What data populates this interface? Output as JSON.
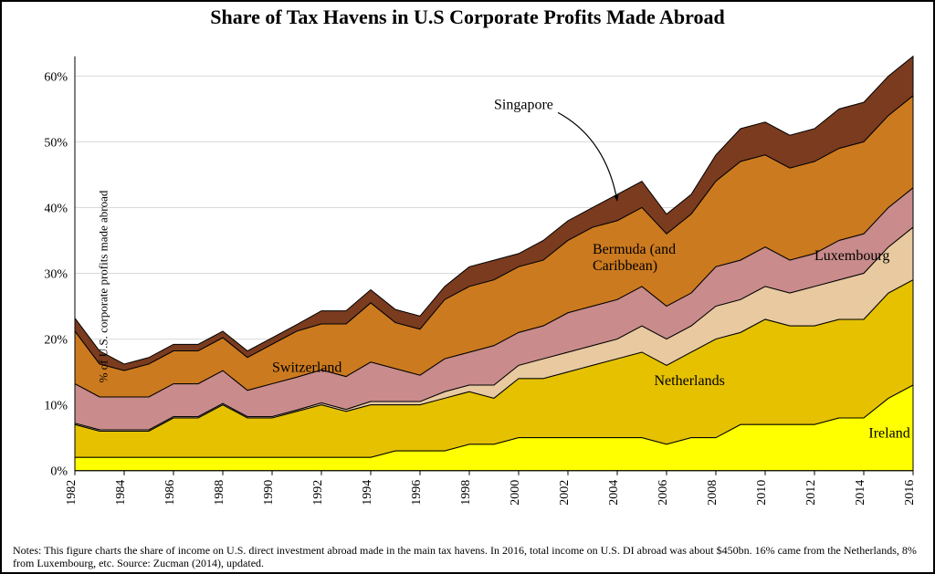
{
  "chart": {
    "type": "area-stacked",
    "title": "Share of Tax Havens in U.S Corporate Profits Made Abroad",
    "title_fontsize": 22,
    "title_weight": "bold",
    "ylabel": "% of U.S. corporate profits made abroad",
    "ylabel_fontsize": 13,
    "background_color": "#ffffff",
    "border_color": "#000000",
    "grid_color": "#d9d9d9",
    "axis_fontsize": 14,
    "label_fontsize": 16,
    "years": [
      1982,
      1983,
      1984,
      1985,
      1986,
      1987,
      1988,
      1989,
      1990,
      1991,
      1992,
      1993,
      1994,
      1995,
      1996,
      1997,
      1998,
      1999,
      2000,
      2001,
      2002,
      2003,
      2004,
      2005,
      2006,
      2007,
      2008,
      2009,
      2010,
      2011,
      2012,
      2013,
      2014,
      2015,
      2016
    ],
    "ylim": [
      0,
      63
    ],
    "ytick_step": 10,
    "xtick_step": 2,
    "series": [
      {
        "name": "Ireland",
        "label": "Ireland",
        "fill": "#ffff00",
        "stroke": "#000000",
        "values": [
          2,
          2,
          2,
          2,
          2,
          2,
          2,
          2,
          2,
          2,
          2,
          2,
          2,
          3,
          3,
          3,
          4,
          4,
          5,
          5,
          5,
          5,
          5,
          5,
          4,
          5,
          5,
          7,
          7,
          7,
          7,
          8,
          8,
          11,
          13
        ]
      },
      {
        "name": "Netherlands",
        "label": "Netherlands",
        "fill": "#e5c100",
        "stroke": "#000000",
        "values": [
          5,
          4,
          4,
          4,
          6,
          6,
          8,
          6,
          6,
          7,
          8,
          7,
          8,
          7,
          7,
          8,
          8,
          7,
          9,
          9,
          10,
          11,
          12,
          13,
          12,
          13,
          15,
          14,
          16,
          15,
          15,
          15,
          15,
          16,
          16
        ]
      },
      {
        "name": "Luxembourg",
        "label": "Luxembourg",
        "fill": "#e8c9a0",
        "stroke": "#000000",
        "values": [
          0.2,
          0.2,
          0.2,
          0.2,
          0.2,
          0.2,
          0.2,
          0.2,
          0.2,
          0.2,
          0.3,
          0.3,
          0.5,
          0.5,
          0.5,
          1,
          1,
          2,
          2,
          3,
          3,
          3,
          3,
          4,
          4,
          4,
          5,
          5,
          5,
          5,
          6,
          6,
          7,
          7,
          8
        ]
      },
      {
        "name": "Switzerland",
        "label": "Switzerland",
        "fill": "#c98b8b",
        "stroke": "#000000",
        "values": [
          6,
          5,
          5,
          5,
          5,
          5,
          5,
          4,
          5,
          5,
          5,
          5,
          6,
          5,
          4,
          5,
          5,
          6,
          5,
          5,
          6,
          6,
          6,
          6,
          5,
          5,
          6,
          6,
          6,
          5,
          5,
          6,
          6,
          6,
          6
        ]
      },
      {
        "name": "Bermuda",
        "label": "Bermuda (and Caribbean)",
        "fill": "#cc7a1f",
        "stroke": "#000000",
        "values": [
          8,
          5,
          4,
          5,
          5,
          5,
          5,
          5,
          6,
          7,
          7,
          8,
          9,
          7,
          7,
          9,
          10,
          10,
          10,
          10,
          11,
          12,
          12,
          12,
          11,
          12,
          13,
          15,
          14,
          14,
          14,
          14,
          14,
          14,
          14
        ]
      },
      {
        "name": "Singapore",
        "label": "Singapore",
        "fill": "#7a3b1f",
        "stroke": "#000000",
        "values": [
          2,
          2,
          1,
          1,
          1,
          1,
          1,
          1,
          1,
          1,
          2,
          2,
          2,
          2,
          2,
          2,
          3,
          3,
          2,
          3,
          3,
          3,
          4,
          4,
          3,
          3,
          4,
          5,
          5,
          5,
          5,
          6,
          6,
          6,
          6
        ]
      }
    ],
    "series_labels_pos": {
      "Ireland": {
        "x": 2014.2,
        "y": 5
      },
      "Netherlands": {
        "x": 2005.5,
        "y": 13
      },
      "Luxembourg": {
        "x": 2012.0,
        "y": 32,
        "anchor": "start"
      },
      "Switzerland": {
        "x": 1990.0,
        "y": 15
      },
      "Bermuda": {
        "x": 2003.0,
        "y": 33,
        "multiline": true
      },
      "Singapore": {
        "x": 1999.0,
        "y": 55,
        "arrow_to": {
          "x": 2004,
          "y": 41
        }
      }
    },
    "notes": "Notes: This figure charts the share of income on U.S. direct investment abroad made in the main tax havens. In 2016, total income on U.S. DI abroad was about $450bn. 16% came from the Netherlands, 8% from Luxembourg, etc. Source: Zucman (2014), updated.",
    "notes_fontsize": 12
  }
}
